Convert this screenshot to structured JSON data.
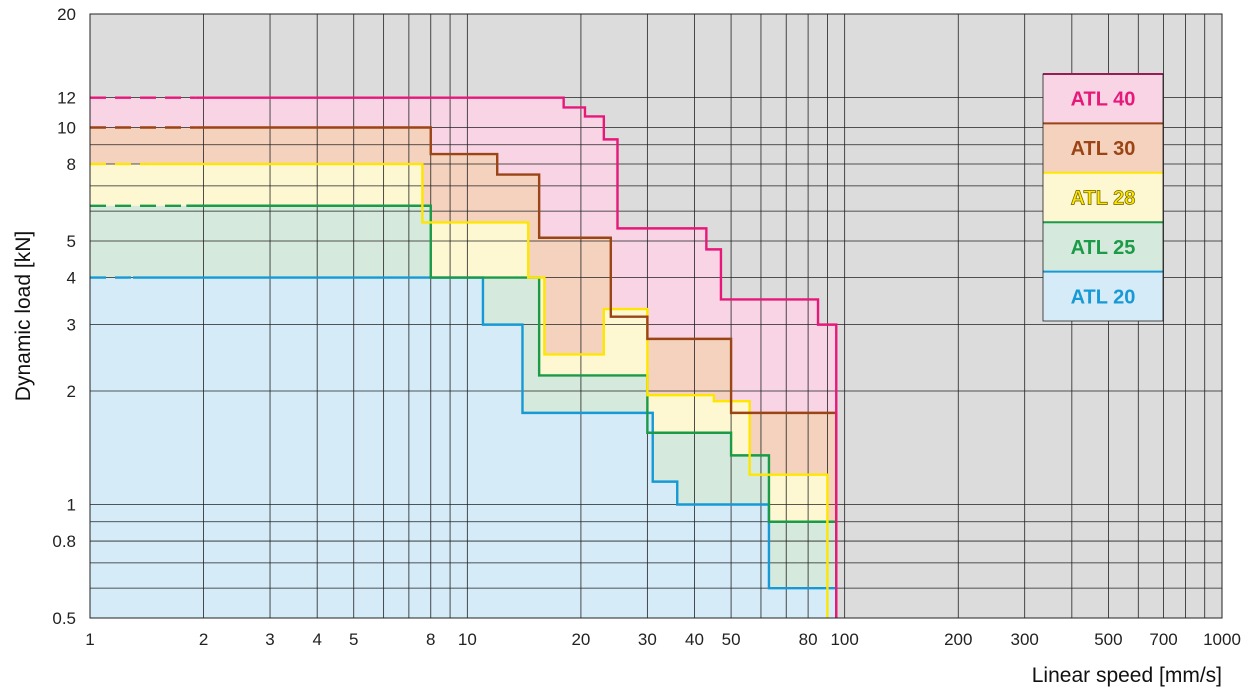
{
  "chart_data": {
    "type": "area",
    "title": "",
    "xlabel": "Linear speed [mm/s]",
    "ylabel": "Dynamic load [kN]",
    "xscale": "log",
    "yscale": "log",
    "xlim": [
      1,
      1000
    ],
    "ylim": [
      0.5,
      20
    ],
    "grid": true,
    "legend_position": "top-right",
    "background_color": "#dcdcdc",
    "x_ticks": [
      {
        "value": 1,
        "label": "1"
      },
      {
        "value": 2,
        "label": "2"
      },
      {
        "value": 3,
        "label": "3"
      },
      {
        "value": 4,
        "label": "4"
      },
      {
        "value": 5,
        "label": "5"
      },
      {
        "value": 8,
        "label": "8"
      },
      {
        "value": 10,
        "label": "10"
      },
      {
        "value": 20,
        "label": "20"
      },
      {
        "value": 30,
        "label": "30"
      },
      {
        "value": 40,
        "label": "40"
      },
      {
        "value": 50,
        "label": "50"
      },
      {
        "value": 80,
        "label": "80"
      },
      {
        "value": 100,
        "label": "100"
      },
      {
        "value": 200,
        "label": "200"
      },
      {
        "value": 300,
        "label": "300"
      },
      {
        "value": 500,
        "label": "500"
      },
      {
        "value": 700,
        "label": "700"
      },
      {
        "value": 1000,
        "label": "1000"
      }
    ],
    "y_ticks": [
      {
        "value": 0.5,
        "label": "0.5"
      },
      {
        "value": 0.8,
        "label": "0.8"
      },
      {
        "value": 1,
        "label": "1"
      },
      {
        "value": 2,
        "label": "2"
      },
      {
        "value": 3,
        "label": "3"
      },
      {
        "value": 4,
        "label": "4"
      },
      {
        "value": 5,
        "label": "5"
      },
      {
        "value": 8,
        "label": "8"
      },
      {
        "value": 10,
        "label": "10"
      },
      {
        "value": 12,
        "label": "12"
      },
      {
        "value": 20,
        "label": "20"
      }
    ],
    "x_grid": [
      1,
      2,
      3,
      4,
      5,
      6,
      7,
      8,
      9,
      10,
      20,
      30,
      40,
      50,
      60,
      70,
      80,
      90,
      100,
      200,
      300,
      400,
      500,
      600,
      700,
      800,
      900,
      1000
    ],
    "y_grid": [
      0.5,
      0.6,
      0.7,
      0.8,
      0.9,
      1,
      2,
      3,
      4,
      5,
      6,
      7,
      8,
      9,
      10,
      12,
      20
    ],
    "series": [
      {
        "name": "ATL 40",
        "color": "#e6197a",
        "fill": "#f8d4e4",
        "dashed_until_x": 1.9,
        "points": [
          [
            1,
            12
          ],
          [
            18,
            12
          ],
          [
            18,
            11.3
          ],
          [
            20.5,
            11.3
          ],
          [
            20.5,
            10.7
          ],
          [
            23,
            10.7
          ],
          [
            23,
            9.3
          ],
          [
            25,
            9.3
          ],
          [
            25,
            5.4
          ],
          [
            43,
            5.4
          ],
          [
            43,
            4.75
          ],
          [
            47,
            4.75
          ],
          [
            47,
            3.5
          ],
          [
            85,
            3.5
          ],
          [
            85,
            3.0
          ],
          [
            95,
            3.0
          ],
          [
            95,
            0.5
          ]
        ]
      },
      {
        "name": "ATL 30",
        "color": "#9b4415",
        "fill": "#f4d2bd",
        "dashed_until_x": 1.9,
        "points": [
          [
            1,
            10
          ],
          [
            8,
            10
          ],
          [
            8,
            8.5
          ],
          [
            12,
            8.5
          ],
          [
            12,
            7.5
          ],
          [
            15.5,
            7.5
          ],
          [
            15.5,
            5.1
          ],
          [
            24,
            5.1
          ],
          [
            24,
            3.15
          ],
          [
            30,
            3.15
          ],
          [
            30,
            2.75
          ],
          [
            50,
            2.75
          ],
          [
            50,
            1.75
          ],
          [
            95,
            1.75
          ],
          [
            95,
            0.5
          ]
        ]
      },
      {
        "name": "ATL 28",
        "color": "#ffe600",
        "fill": "#fef8d2",
        "dashed_until_x": 1.4,
        "points": [
          [
            1,
            8
          ],
          [
            7.6,
            8
          ],
          [
            7.6,
            5.6
          ],
          [
            14.5,
            5.6
          ],
          [
            14.5,
            4.0
          ],
          [
            16,
            4.0
          ],
          [
            16,
            2.5
          ],
          [
            23,
            2.5
          ],
          [
            23,
            3.3
          ],
          [
            30,
            3.3
          ],
          [
            30,
            1.95
          ],
          [
            45,
            1.95
          ],
          [
            45,
            1.88
          ],
          [
            56,
            1.88
          ],
          [
            56,
            1.2
          ],
          [
            90,
            1.2
          ],
          [
            90,
            0.5
          ]
        ]
      },
      {
        "name": "ATL 25",
        "color": "#1b9a47",
        "fill": "#d5e9dc",
        "dashed_until_x": 1.8,
        "points": [
          [
            1,
            6.2
          ],
          [
            8,
            6.2
          ],
          [
            8,
            4.0
          ],
          [
            15.5,
            4.0
          ],
          [
            15.5,
            2.2
          ],
          [
            30,
            2.2
          ],
          [
            30,
            1.55
          ],
          [
            50,
            1.55
          ],
          [
            50,
            1.35
          ],
          [
            63,
            1.35
          ],
          [
            63,
            0.9
          ],
          [
            95,
            0.9
          ],
          [
            95,
            0.5
          ]
        ]
      },
      {
        "name": "ATL 20",
        "color": "#1799d6",
        "fill": "#d5ebf8",
        "dashed_until_x": 1.3,
        "points": [
          [
            1,
            4.0
          ],
          [
            11,
            4.0
          ],
          [
            11,
            3.0
          ],
          [
            14,
            3.0
          ],
          [
            14,
            1.75
          ],
          [
            31,
            1.75
          ],
          [
            31,
            1.15
          ],
          [
            36,
            1.15
          ],
          [
            36,
            1.0
          ],
          [
            63,
            1.0
          ],
          [
            63,
            0.6
          ],
          [
            95,
            0.6
          ],
          [
            95,
            0.5
          ]
        ]
      }
    ]
  }
}
